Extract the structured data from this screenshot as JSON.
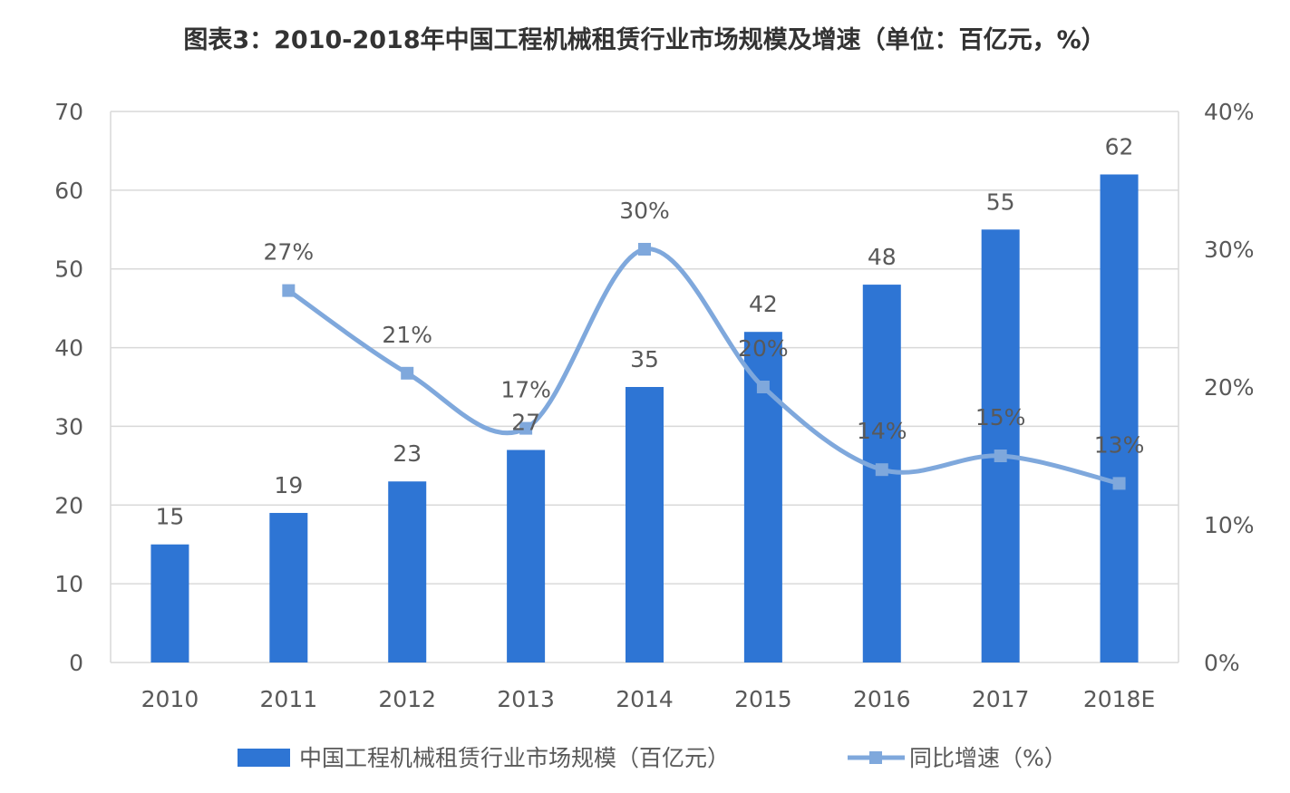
{
  "chart_data": {
    "type": "bar",
    "title": "图表3：2010-2018年中国工程机械租赁行业市场规模及增速（单位：百亿元，%）",
    "categories": [
      "2010",
      "2011",
      "2012",
      "2013",
      "2014",
      "2015",
      "2016",
      "2017",
      "2018E"
    ],
    "series": [
      {
        "name": "中国工程机械租赁行业市场规模（百亿元）",
        "type": "bar",
        "axis": "left",
        "values": [
          15,
          19,
          23,
          27,
          35,
          42,
          48,
          55,
          62
        ],
        "labels": [
          "15",
          "19",
          "23",
          "27",
          "35",
          "42",
          "48",
          "55",
          "62"
        ],
        "color": "#2e75d4"
      },
      {
        "name": "同比增速（%）",
        "type": "line",
        "axis": "right",
        "smooth": true,
        "marker": "square",
        "values": [
          null,
          27,
          21,
          17,
          30,
          20,
          14,
          15,
          13
        ],
        "labels": [
          "",
          "27%",
          "21%",
          "17%",
          "30%",
          "20%",
          "14%",
          "15%",
          "13%"
        ],
        "color": "#7fa8dc"
      }
    ],
    "y_left": {
      "range": [
        0,
        70
      ],
      "ticks": [
        0,
        10,
        20,
        30,
        40,
        50,
        60,
        70
      ],
      "tick_labels": [
        "0",
        "10",
        "20",
        "30",
        "40",
        "50",
        "60",
        "70"
      ]
    },
    "y_right": {
      "range": [
        0,
        40
      ],
      "ticks": [
        0,
        10,
        20,
        30,
        40
      ],
      "tick_labels": [
        "0%",
        "10%",
        "20%",
        "30%",
        "40%"
      ]
    },
    "xlabel": "",
    "ylabel": "",
    "grid": true,
    "legend": "bottom-center",
    "colors": {
      "bar": "#2e75d4",
      "line": "#7fa8dc",
      "grid": "#d9d9d9",
      "text": "#595959",
      "title": "#333333"
    }
  }
}
